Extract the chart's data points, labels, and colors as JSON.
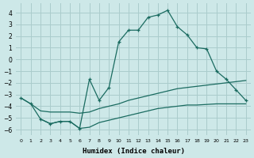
{
  "xlabel": "Humidex (Indice chaleur)",
  "background_color": "#cde8e8",
  "grid_color": "#aacccc",
  "line_color": "#1a6b60",
  "ylim": [
    -6.5,
    4.8
  ],
  "xlim": [
    -0.5,
    23.5
  ],
  "yticks": [
    -6,
    -5,
    -4,
    -3,
    -2,
    -1,
    0,
    1,
    2,
    3,
    4
  ],
  "xticks": [
    0,
    1,
    2,
    3,
    4,
    5,
    6,
    7,
    8,
    9,
    10,
    11,
    12,
    13,
    14,
    15,
    16,
    17,
    18,
    19,
    20,
    21,
    22,
    23
  ],
  "curve1_x": [
    0,
    1,
    2,
    3,
    4,
    5,
    6,
    7,
    8,
    9,
    10,
    11,
    12,
    13,
    14,
    15,
    16,
    17,
    18,
    19,
    20,
    21,
    22,
    23
  ],
  "curve1_y": [
    -3.3,
    -3.8,
    -5.1,
    -5.5,
    -5.3,
    -5.3,
    -5.9,
    -1.7,
    -3.5,
    -2.4,
    1.5,
    2.5,
    2.5,
    3.6,
    3.8,
    4.2,
    2.8,
    2.1,
    1.0,
    0.9,
    -1.0,
    -1.7,
    -2.6,
    -3.5
  ],
  "curve2_x": [
    0,
    1,
    2,
    3,
    4,
    5,
    6,
    7,
    8,
    9,
    10,
    11,
    12,
    13,
    14,
    15,
    16,
    17,
    18,
    19,
    20,
    21,
    22,
    23
  ],
  "curve2_y": [
    -3.3,
    -3.8,
    -4.4,
    -4.5,
    -4.5,
    -4.5,
    -4.6,
    -4.5,
    -4.2,
    -4.0,
    -3.8,
    -3.5,
    -3.3,
    -3.1,
    -2.9,
    -2.7,
    -2.5,
    -2.4,
    -2.3,
    -2.2,
    -2.1,
    -2.0,
    -1.9,
    -1.8
  ],
  "curve3_x": [
    2,
    3,
    4,
    5,
    6,
    7,
    8,
    9,
    10,
    11,
    12,
    13,
    14,
    15,
    16,
    17,
    18,
    19,
    20,
    21,
    22,
    23
  ],
  "curve3_y": [
    -5.1,
    -5.5,
    -5.3,
    -5.3,
    -5.9,
    -5.8,
    -5.4,
    -5.2,
    -5.0,
    -4.8,
    -4.6,
    -4.4,
    -4.2,
    -4.1,
    -4.0,
    -3.9,
    -3.9,
    -3.85,
    -3.8,
    -3.8,
    -3.8,
    -3.8
  ]
}
